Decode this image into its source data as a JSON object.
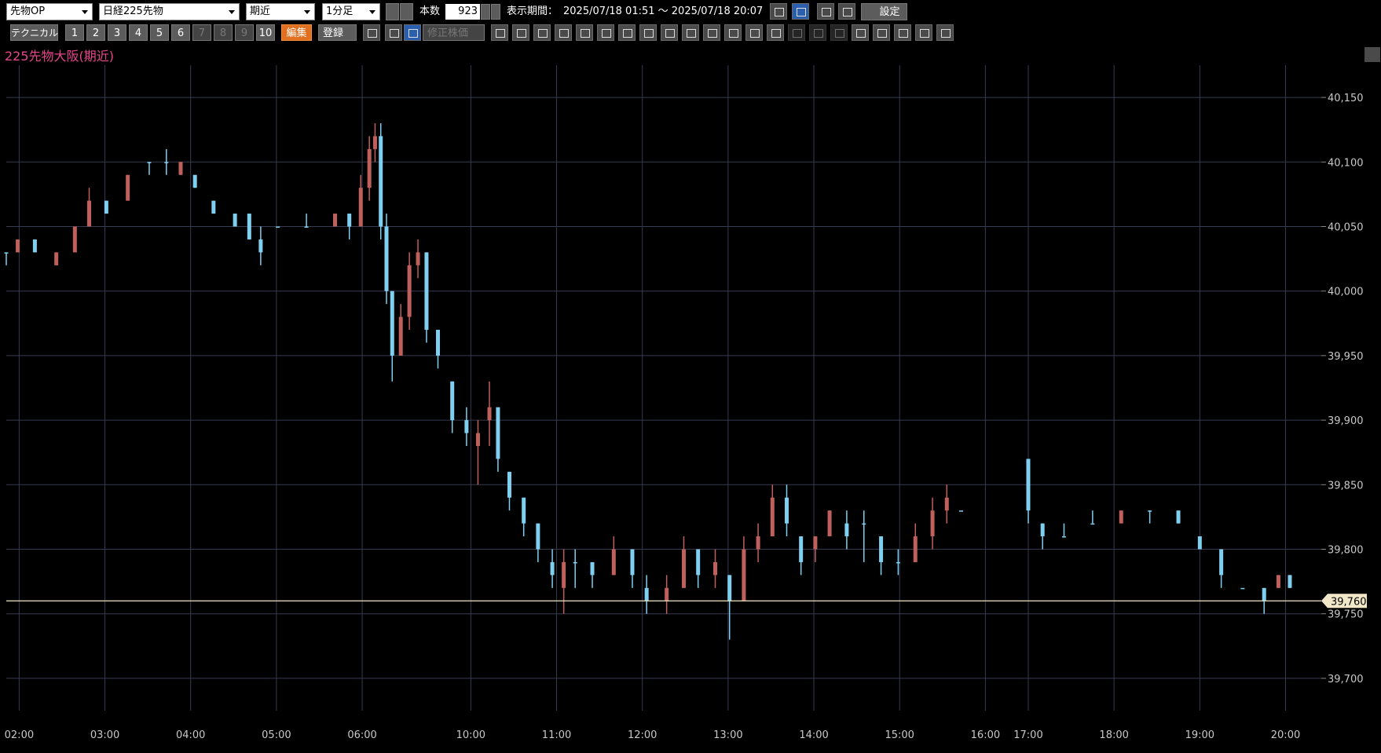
{
  "toolbar": {
    "market": "先物OP",
    "symbol": "日経225先物",
    "contract": "期近",
    "interval": "1分足",
    "bar_count_label": "本数",
    "bar_count": "923",
    "period_label": "表示期間：",
    "period": "2025/07/18 01:51 ～ 2025/07/18 20:07",
    "settings": "設定",
    "technical": "テクニカル",
    "number_buttons": [
      "1",
      "2",
      "3",
      "4",
      "5",
      "6",
      "7",
      "8",
      "9",
      "10"
    ],
    "disabled_buttons": [
      "7",
      "8",
      "9"
    ],
    "edit": "編集",
    "register": "登録",
    "adjusted_price": "修正株価"
  },
  "chart_data": {
    "type": "candlestick",
    "title": "225先物大阪(期近)",
    "up_color": "#c0605c",
    "down_color": "#7fd0f0",
    "grid": true,
    "xlim": [
      0,
      920
    ],
    "xticks": [
      {
        "value": 9,
        "label": "02:00"
      },
      {
        "value": 69,
        "label": "03:00"
      },
      {
        "value": 129,
        "label": "04:00"
      },
      {
        "value": 189,
        "label": "05:00"
      },
      {
        "value": 249,
        "label": "06:00"
      },
      {
        "value": 325,
        "label": "10:00"
      },
      {
        "value": 385,
        "label": "11:00"
      },
      {
        "value": 445,
        "label": "12:00"
      },
      {
        "value": 505,
        "label": "13:00"
      },
      {
        "value": 565,
        "label": "14:00"
      },
      {
        "value": 625,
        "label": "15:00"
      },
      {
        "value": 685,
        "label": "16:00"
      },
      {
        "value": 715,
        "label": "17:00"
      },
      {
        "value": 775,
        "label": "18:00"
      },
      {
        "value": 835,
        "label": "19:00"
      },
      {
        "value": 895,
        "label": "20:00"
      }
    ],
    "ylim": [
      39675,
      40175
    ],
    "yticks": [
      {
        "value": 39700,
        "label": "39,700"
      },
      {
        "value": 39750,
        "label": "39,750"
      },
      {
        "value": 39800,
        "label": "39,800"
      },
      {
        "value": 39850,
        "label": "39,850"
      },
      {
        "value": 39900,
        "label": "39,900"
      },
      {
        "value": 39950,
        "label": "39,950"
      },
      {
        "value": 40000,
        "label": "40,000"
      },
      {
        "value": 40050,
        "label": "40,050"
      },
      {
        "value": 40100,
        "label": "40,100"
      },
      {
        "value": 40150,
        "label": "40,150"
      }
    ],
    "last_price": {
      "value": 39760,
      "label": "39,760",
      "color": "#f3e7c9"
    },
    "x": [
      0,
      8,
      20,
      35,
      48,
      58,
      70,
      85,
      100,
      112,
      122,
      132,
      145,
      160,
      170,
      178,
      190,
      210,
      230,
      240,
      248,
      254,
      258,
      262,
      266,
      270,
      276,
      282,
      288,
      294,
      302,
      312,
      322,
      330,
      338,
      344,
      352,
      362,
      372,
      382,
      390,
      398,
      410,
      425,
      438,
      448,
      462,
      474,
      484,
      496,
      506,
      516,
      526,
      536,
      546,
      556,
      566,
      576,
      588,
      600,
      612,
      624,
      636,
      648,
      658,
      668,
      715,
      725,
      740,
      760,
      780,
      800,
      820,
      835,
      850,
      865,
      880,
      890,
      898
    ],
    "open": [
      40030,
      40030,
      40040,
      40020,
      40030,
      40050,
      40070,
      40070,
      40100,
      40100,
      40090,
      40090,
      40070,
      40060,
      40060,
      40040,
      40050,
      40050,
      40050,
      40060,
      40050,
      40080,
      40110,
      40120,
      40050,
      40000,
      39950,
      39980,
      40020,
      40030,
      39970,
      39930,
      39900,
      39880,
      39900,
      39910,
      39860,
      39840,
      39820,
      39790,
      39770,
      39790,
      39790,
      39780,
      39800,
      39770,
      39760,
      39770,
      39800,
      39780,
      39780,
      39760,
      39800,
      39810,
      39840,
      39810,
      39800,
      39810,
      39820,
      39820,
      39810,
      39790,
      39790,
      39810,
      39830,
      39830,
      39870,
      39820,
      39810,
      39820,
      39820,
      39830,
      39830,
      39810,
      39800,
      39770,
      39770,
      39770,
      39780
    ],
    "high": [
      40030,
      40040,
      40040,
      40030,
      40050,
      40080,
      40070,
      40090,
      40100,
      40110,
      40100,
      40090,
      40070,
      40060,
      40060,
      40050,
      40050,
      40060,
      40060,
      40060,
      40090,
      40120,
      40130,
      40130,
      40060,
      40000,
      39990,
      40030,
      40040,
      40030,
      39970,
      39930,
      39910,
      39900,
      39930,
      39910,
      39860,
      39840,
      39820,
      39800,
      39800,
      39800,
      39790,
      39810,
      39800,
      39780,
      39780,
      39810,
      39800,
      39800,
      39780,
      39810,
      39820,
      39850,
      39850,
      39810,
      39810,
      39830,
      39830,
      39830,
      39810,
      39800,
      39820,
      39840,
      39850,
      39830,
      39870,
      39820,
      39820,
      39830,
      39830,
      39830,
      39830,
      39810,
      39800,
      39770,
      39770,
      39780,
      39780
    ],
    "low": [
      40020,
      40030,
      40030,
      40020,
      40030,
      40050,
      40060,
      40070,
      40090,
      40090,
      40090,
      40080,
      40060,
      40050,
      40040,
      40020,
      40050,
      40050,
      40050,
      40040,
      40050,
      40070,
      40100,
      40040,
      39990,
      39930,
      39950,
      39970,
      40010,
      39960,
      39940,
      39890,
      39880,
      39850,
      39880,
      39860,
      39830,
      39810,
      39790,
      39770,
      39750,
      39770,
      39770,
      39780,
      39770,
      39750,
      39750,
      39770,
      39770,
      39770,
      39730,
      39760,
      39790,
      39810,
      39810,
      39780,
      39790,
      39810,
      39800,
      39790,
      39780,
      39780,
      39790,
      39800,
      39820,
      39830,
      39820,
      39800,
      39810,
      39820,
      39820,
      39820,
      39820,
      39800,
      39770,
      39770,
      39750,
      39770,
      39770
    ],
    "close": [
      40030,
      40040,
      40030,
      40030,
      40050,
      40070,
      40060,
      40090,
      40100,
      40100,
      40100,
      40080,
      40060,
      40050,
      40040,
      40030,
      40050,
      40050,
      40060,
      40050,
      40080,
      40110,
      40120,
      40050,
      40000,
      39950,
      39980,
      40020,
      40030,
      39970,
      39950,
      39900,
      39890,
      39890,
      39910,
      39870,
      39840,
      39820,
      39800,
      39780,
      39790,
      39790,
      39780,
      39800,
      39780,
      39760,
      39770,
      39800,
      39780,
      39790,
      39760,
      39800,
      39810,
      39840,
      39820,
      39790,
      39810,
      39830,
      39810,
      39820,
      39790,
      39790,
      39810,
      39830,
      39840,
      39830,
      39830,
      39810,
      39810,
      39820,
      39830,
      39830,
      39820,
      39800,
      39780,
      39770,
      39760,
      39780,
      39770
    ]
  }
}
